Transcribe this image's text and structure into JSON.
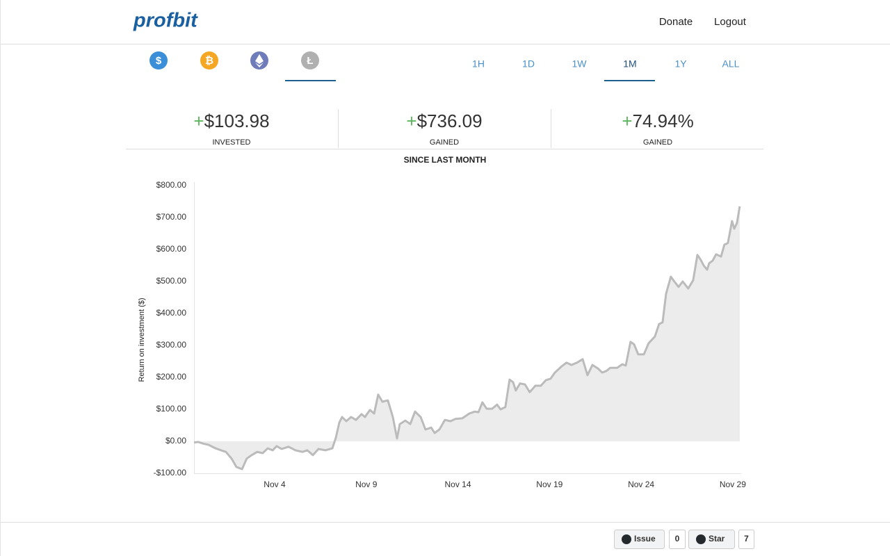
{
  "header": {
    "brand": "profbit",
    "nav": [
      "Donate",
      "Logout"
    ]
  },
  "coins": [
    {
      "symbol": "$",
      "color": "#3b8fd9"
    },
    {
      "symbol": "₿",
      "color": "#f5a623"
    },
    {
      "color": "#6f7cba"
    },
    {
      "symbol": "Ł",
      "color": "#b0b0b0"
    }
  ],
  "active_coin": 3,
  "periods": [
    "1H",
    "1D",
    "1W",
    "1M",
    "1Y",
    "ALL"
  ],
  "active_period": 3,
  "stats": [
    {
      "sign": "+",
      "value": "$103.98",
      "label": "INVESTED"
    },
    {
      "sign": "+",
      "value": "$736.09",
      "label": "GAINED"
    },
    {
      "sign": "+",
      "value": "74.94%",
      "label": "GAINED"
    }
  ],
  "subtitle": "SINCE LAST MONTH",
  "chart_data": {
    "type": "area",
    "y_label": "Return on investment ($)",
    "color": "#bbbbbb",
    "fill": "#ececec",
    "x": [
      -0.4,
      -0.17,
      0.09,
      0.4,
      0.78,
      1.08,
      1.34,
      1.65,
      1.91,
      2.22,
      2.48,
      2.75,
      3.05,
      3.35,
      3.62,
      3.89,
      4.11,
      4.38,
      4.76,
      5.14,
      5.52,
      5.78,
      6.09,
      6.39,
      6.77,
      7.15,
      7.34,
      7.53,
      7.68,
      7.91,
      8.17,
      8.44,
      8.74,
      8.93,
      9.2,
      9.43,
      9.65,
      9.88,
      10.18,
      10.45,
      10.68,
      10.83,
      11.13,
      11.4,
      11.66,
      11.97,
      12.23,
      12.54,
      12.73,
      12.99,
      13.29,
      13.6,
      13.86,
      14.24,
      14.62,
      14.93,
      15.12,
      15.34,
      15.57,
      15.87,
      16.14,
      16.33,
      16.59,
      16.82,
      17.01,
      17.16,
      17.39,
      17.66,
      17.92,
      18.23,
      18.53,
      18.8,
      19.06,
      19.29,
      19.67,
      19.93,
      20.2,
      20.5,
      20.81,
      21.07,
      21.34,
      21.64,
      21.87,
      22.1,
      22.32,
      22.7,
      22.97,
      23.16,
      23.42,
      23.61,
      23.84,
      24.15,
      24.41,
      24.75,
      24.98,
      25.17,
      25.36,
      25.62,
      25.81,
      26.04,
      26.27,
      26.57,
      26.84,
      27.07,
      27.26,
      27.41,
      27.6,
      27.71,
      27.9,
      28.09,
      28.36,
      28.54,
      28.73,
      28.96,
      29.08,
      29.23,
      29.38
    ],
    "values": [
      -4,
      -2,
      -7,
      -11,
      -22,
      -28,
      -33,
      -54,
      -80,
      -87,
      -54,
      -43,
      -33,
      -37,
      -22,
      -28,
      -15,
      -24,
      -17,
      -28,
      -33,
      -28,
      -43,
      -24,
      -28,
      -22,
      11,
      59,
      76,
      63,
      76,
      67,
      85,
      76,
      98,
      87,
      146,
      124,
      128,
      76,
      9,
      54,
      65,
      54,
      93,
      76,
      37,
      43,
      26,
      37,
      67,
      63,
      70,
      72,
      87,
      93,
      91,
      122,
      102,
      102,
      115,
      100,
      107,
      193,
      185,
      159,
      181,
      178,
      154,
      174,
      174,
      191,
      196,
      215,
      235,
      246,
      239,
      246,
      257,
      207,
      239,
      228,
      215,
      220,
      230,
      230,
      241,
      237,
      311,
      304,
      272,
      272,
      307,
      328,
      367,
      372,
      461,
      515,
      500,
      483,
      500,
      478,
      504,
      583,
      567,
      550,
      537,
      557,
      565,
      585,
      578,
      615,
      620,
      689,
      665,
      683,
      735
    ],
    "xlim": [
      -0.4,
      29.46
    ],
    "xticks": [
      {
        "value": 4,
        "label": "Nov 4"
      },
      {
        "value": 9,
        "label": "Nov 9"
      },
      {
        "value": 14,
        "label": "Nov 14"
      },
      {
        "value": 19,
        "label": "Nov 19"
      },
      {
        "value": 24,
        "label": "Nov 24"
      },
      {
        "value": 29,
        "label": "Nov 29"
      }
    ],
    "ylim": [
      -100,
      800
    ],
    "yticks": [
      {
        "value": -100,
        "label": "-$100.00"
      },
      {
        "value": 0,
        "label": "$0.00"
      },
      {
        "value": 100,
        "label": "$100.00"
      },
      {
        "value": 200,
        "label": "$200.00"
      },
      {
        "value": 300,
        "label": "$300.00"
      },
      {
        "value": 400,
        "label": "$400.00"
      },
      {
        "value": 500,
        "label": "$500.00"
      },
      {
        "value": 600,
        "label": "$600.00"
      },
      {
        "value": 700,
        "label": "$700.00"
      },
      {
        "value": 800,
        "label": "$800.00"
      }
    ]
  },
  "footer": {
    "buttons": [
      {
        "label": "Issue",
        "count": "0"
      },
      {
        "label": "Star",
        "count": "7"
      }
    ]
  }
}
